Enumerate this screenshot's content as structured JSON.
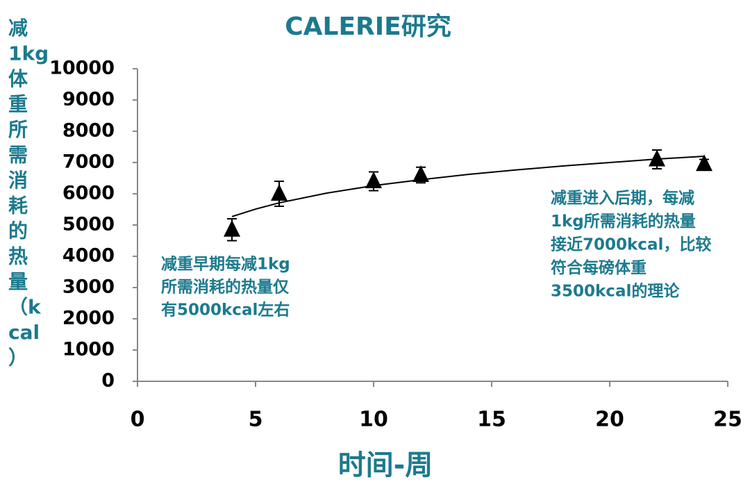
{
  "chart_data": {
    "type": "scatter",
    "title": "CALERIE研究",
    "xlabel": "时间-周",
    "ylabel_lines": [
      "减",
      "1kg",
      "体",
      "重",
      "所",
      "需",
      "消",
      "耗",
      "的",
      "热",
      "量",
      "（k",
      "cal",
      "）"
    ],
    "x": [
      4,
      6,
      10,
      12,
      22,
      24
    ],
    "series": [
      {
        "color": "#000000",
        "values": [
          4850,
          6000,
          6400,
          6600,
          7100,
          6950
        ],
        "errors": [
          350,
          400,
          300,
          250,
          300,
          150
        ]
      }
    ],
    "trendline": {
      "color": "#000000",
      "x": [
        4,
        5,
        6,
        8,
        10,
        12,
        14,
        16,
        18,
        20,
        22,
        24
      ],
      "values": [
        5270,
        5510,
        5710,
        6020,
        6260,
        6450,
        6620,
        6760,
        6890,
        7000,
        7110,
        7200
      ]
    },
    "xlim": [
      0,
      25
    ],
    "xticks": [
      0,
      5,
      10,
      15,
      20,
      25
    ],
    "ylim": [
      0,
      10000
    ],
    "yticks": [
      0,
      1000,
      2000,
      3000,
      4000,
      5000,
      6000,
      7000,
      8000,
      9000,
      10000
    ],
    "annotations": [
      {
        "lines": [
          "减重早期每减1kg",
          "所需消耗的热量仅",
          "有5000kcal左右"
        ]
      },
      {
        "lines": [
          "减重进入后期，每减",
          "1kg所需消耗的热量",
          "接近7000kcal，比较",
          "符合每磅体重",
          "3500kcal的理论"
        ]
      }
    ]
  }
}
